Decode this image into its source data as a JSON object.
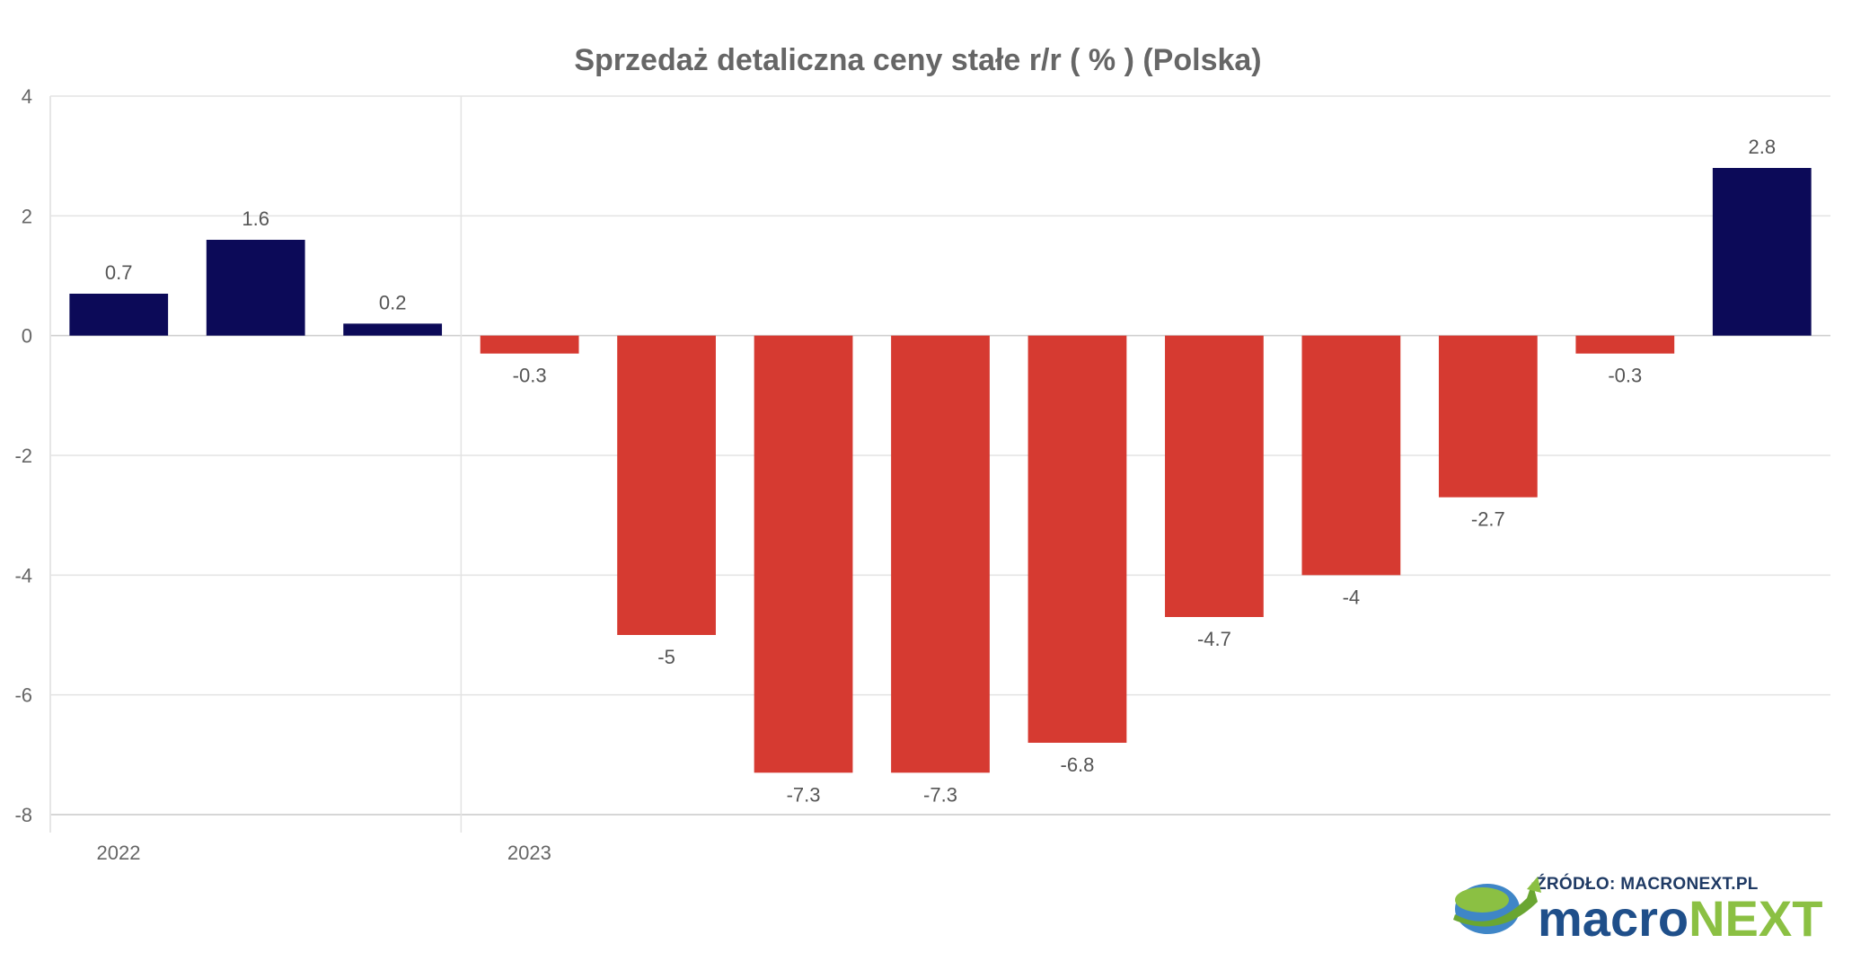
{
  "chart_data": {
    "type": "bar",
    "title": "Sprzedaż detaliczna ceny stałe r/r ( % ) (Polska)",
    "xlabel": "",
    "ylabel": "",
    "ylim": [
      -8,
      4
    ],
    "yticks": [
      4,
      2,
      0,
      -2,
      -4,
      -6,
      -8
    ],
    "x_period_labels": [
      "2022",
      "2023"
    ],
    "values": [
      0.7,
      1.6,
      0.2,
      -0.3,
      -5,
      -7.3,
      -7.3,
      -6.8,
      -4.7,
      -4,
      -2.7,
      -0.3,
      2.8
    ],
    "data_labels": [
      "0.7",
      "1.6",
      "0.2",
      "-0.3",
      "-5",
      "-7.3",
      "-7.3",
      "-6.8",
      "-4.7",
      "-4",
      "-2.7",
      "-0.3",
      "2.8"
    ],
    "colors": {
      "positive": "#0c0a58",
      "negative": "#d63a31"
    },
    "grid": true,
    "legend": "none"
  },
  "source": {
    "text": "ŹRÓDŁO: MACRONEXT.PL",
    "logo_part1": "macro",
    "logo_part2": "NEXT",
    "logo_colors": [
      "#1f4f8a",
      "#8bc043"
    ]
  }
}
